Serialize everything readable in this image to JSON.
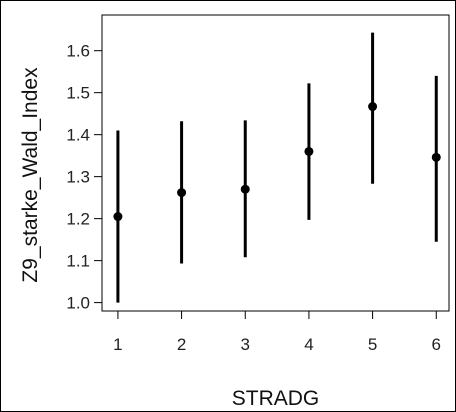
{
  "chart_data": {
    "type": "scatter",
    "subtype": "point-with-error-bars",
    "xlabel": "STRADG",
    "ylabel": "Z9_starke_Wald_Index",
    "x_ticks": [
      "1",
      "2",
      "3",
      "4",
      "5",
      "6"
    ],
    "y_ticks": [
      "1.0",
      "1.1",
      "1.2",
      "1.3",
      "1.4",
      "1.5",
      "1.6"
    ],
    "xlim": [
      0.75,
      6.2
    ],
    "ylim": [
      0.98,
      1.685
    ],
    "grid": false,
    "legend": "none",
    "colors": {
      "marks": "#000000",
      "frame": "#000000"
    },
    "points": [
      {
        "x": 1,
        "y": 1.205,
        "lower": 1.0,
        "upper": 1.41
      },
      {
        "x": 2,
        "y": 1.262,
        "lower": 1.093,
        "upper": 1.432
      },
      {
        "x": 3,
        "y": 1.27,
        "lower": 1.108,
        "upper": 1.434
      },
      {
        "x": 4,
        "y": 1.36,
        "lower": 1.197,
        "upper": 1.522
      },
      {
        "x": 5,
        "y": 1.467,
        "lower": 1.283,
        "upper": 1.643
      },
      {
        "x": 6,
        "y": 1.346,
        "lower": 1.145,
        "upper": 1.54
      }
    ]
  }
}
